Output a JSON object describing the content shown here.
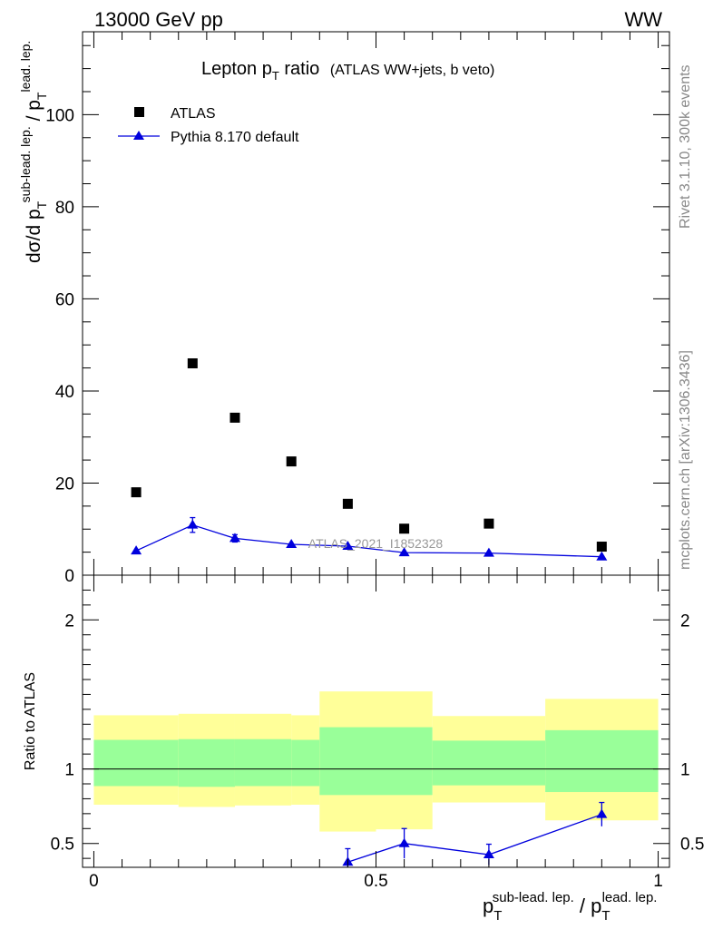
{
  "header": {
    "left": "13000 GeV pp",
    "right": "WW"
  },
  "side_text": {
    "top": "Rivet 3.1.10,  300k events",
    "bottom": "mcplots.cern.ch [arXiv:1306.3436]"
  },
  "watermark": "ATLAS_2021_I1852328",
  "colors": {
    "mc": "#0000dd",
    "band_inner": "#99ff99",
    "band_outer": "#ffff99",
    "data": "#000000"
  },
  "chart_data": {
    "type": "scatter",
    "title_main": "Lepton p",
    "title_sub": "T",
    "title_rest": " ratio",
    "title_paren": "(ATLAS WW+jets, b veto)",
    "xlabel": {
      "base": "p",
      "sub": "T",
      "sup": "sub-lead. lep.",
      "sep": " / ",
      "base2": "p",
      "sub2": "T",
      "sup2": "lead. lep."
    },
    "ylabel": {
      "prefix": "dσ/d p",
      "sub": "T",
      "sup": "sub-lead. lep.",
      "sep": " / p",
      "sub2": "T",
      "sup2": "lead. lep."
    },
    "ratio_ylabel": "Ratio to ATLAS",
    "xlim": [
      -0.02,
      1.02
    ],
    "ylim_main": [
      0,
      118
    ],
    "ylim_ratio": [
      0.34,
      2.3
    ],
    "x_ticks": [
      0,
      0.5,
      1
    ],
    "x_tick_labels": [
      "0",
      "0.5",
      "1"
    ],
    "y_ticks_main": [
      0,
      20,
      40,
      60,
      80,
      100
    ],
    "y_tick_labels_main": [
      "0",
      "20",
      "40",
      "60",
      "80",
      "100"
    ],
    "y_ticks_ratio": [
      0.5,
      1,
      2
    ],
    "y_tick_labels_ratio": [
      "0.5",
      "1",
      "2"
    ],
    "bins": [
      [
        0.0,
        0.15
      ],
      [
        0.15,
        0.25
      ],
      [
        0.25,
        0.35
      ],
      [
        0.35,
        0.4
      ],
      [
        0.4,
        0.5
      ],
      [
        0.5,
        0.6
      ],
      [
        0.6,
        0.8
      ],
      [
        0.8,
        1.0
      ]
    ],
    "series": [
      {
        "name": "ATLAS",
        "marker": "square",
        "x": [
          0.075,
          0.175,
          0.25,
          0.35,
          0.45,
          0.55,
          0.7,
          0.9
        ],
        "y": [
          18.0,
          46.0,
          34.2,
          24.7,
          15.5,
          10.1,
          11.2,
          6.2
        ]
      },
      {
        "name": "Pythia 8.170 default",
        "marker": "triangle",
        "x": [
          0.075,
          0.175,
          0.25,
          0.35,
          0.45,
          0.55,
          0.7,
          0.9
        ],
        "y": [
          5.3,
          10.9,
          8.0,
          6.7,
          6.3,
          4.9,
          4.8,
          4.0
        ],
        "yerr": [
          0.3,
          1.6,
          0.8,
          0.5,
          0.4,
          0.3,
          0.3,
          0.3
        ]
      }
    ],
    "ratio": {
      "x": [
        0.45,
        0.55,
        0.7,
        0.9
      ],
      "y": [
        0.375,
        0.5,
        0.425,
        0.695
      ],
      "yerr": [
        0.09,
        0.1,
        0.07,
        0.08
      ],
      "stat_band": [
        [
          0.885,
          1.195
        ],
        [
          0.88,
          1.2
        ],
        [
          0.885,
          1.2
        ],
        [
          0.885,
          1.195
        ],
        [
          0.825,
          1.28
        ],
        [
          0.825,
          1.28
        ],
        [
          0.89,
          1.19
        ],
        [
          0.845,
          1.26
        ]
      ],
      "total_band": [
        [
          0.76,
          1.36
        ],
        [
          0.745,
          1.37
        ],
        [
          0.755,
          1.37
        ],
        [
          0.76,
          1.36
        ],
        [
          0.58,
          1.52
        ],
        [
          0.595,
          1.52
        ],
        [
          0.775,
          1.355
        ],
        [
          0.655,
          1.47
        ]
      ]
    },
    "grid": false,
    "legend_position": "top-left"
  }
}
